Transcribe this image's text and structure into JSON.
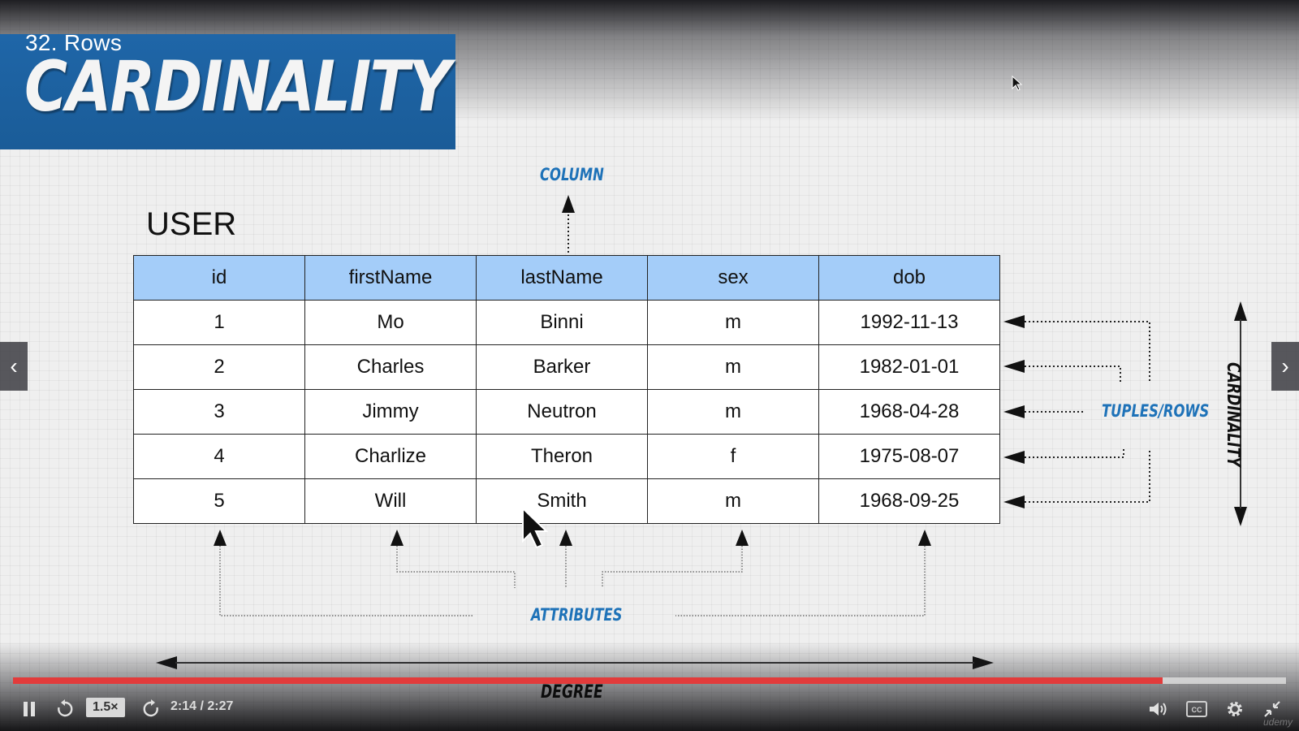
{
  "video": {
    "lecture_title": "32. Rows",
    "banner_text": "CARDINALITY",
    "player": {
      "speed_label": "1.5×",
      "time_display": "2:14 / 2:27",
      "progress": 0.903,
      "watermark": "udemy"
    }
  },
  "slide": {
    "table_name": "USER",
    "columns": [
      "id",
      "firstName",
      "lastName",
      "sex",
      "dob"
    ],
    "rows": [
      [
        "1",
        "Mo",
        "Binni",
        "m",
        "1992-11-13"
      ],
      [
        "2",
        "Charles",
        "Barker",
        "m",
        "1982-01-01"
      ],
      [
        "3",
        "Jimmy",
        "Neutron",
        "m",
        "1968-04-28"
      ],
      [
        "4",
        "Charlize",
        "Theron",
        "f",
        "1975-08-07"
      ],
      [
        "5",
        "Will",
        "Smith",
        "m",
        "1968-09-25"
      ]
    ],
    "labels": {
      "column": "COLUMN",
      "tuples": "TUPLES/ROWS",
      "cardinality": "CARDINALITY",
      "attributes": "ATTRIBUTES",
      "degree": "DEGREE"
    }
  },
  "colors": {
    "banner": "#1f66a8",
    "header_fill": "#a4cdf9",
    "label_blue": "#1e72b8",
    "progress": "#e23b3b"
  },
  "icons": {
    "pause": "pause-icon",
    "rewind": "rewind-icon",
    "forward": "forward-icon",
    "volume": "volume-icon",
    "captions": "captions-icon",
    "settings": "gear-icon",
    "fullscreen": "exit-fullscreen-icon"
  }
}
